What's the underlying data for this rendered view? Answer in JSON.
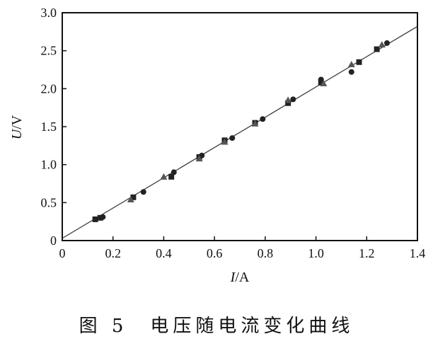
{
  "chart_data": {
    "type": "scatter",
    "xlabel_italic": "I",
    "xlabel_unit": "/A",
    "ylabel_italic": "U",
    "ylabel_unit": "/V",
    "xlim": [
      0,
      1.4
    ],
    "ylim": [
      0,
      3.0
    ],
    "xticks": [
      "0",
      "0.2",
      "0.4",
      "0.6",
      "0.8",
      "1.0",
      "1.2",
      "1.4"
    ],
    "yticks": [
      "0",
      "0.5",
      "1.0",
      "1.5",
      "2.0",
      "2.5",
      "3.0"
    ],
    "grid": false,
    "series": [
      {
        "marker": "square",
        "points": [
          [
            0.13,
            0.28
          ],
          [
            0.15,
            0.3
          ],
          [
            0.28,
            0.57
          ],
          [
            0.43,
            0.84
          ],
          [
            0.54,
            1.1
          ],
          [
            0.64,
            1.32
          ],
          [
            0.76,
            1.55
          ],
          [
            0.89,
            1.81
          ],
          [
            1.02,
            2.08
          ],
          [
            1.17,
            2.35
          ],
          [
            1.24,
            2.52
          ]
        ]
      },
      {
        "marker": "circle",
        "points": [
          [
            0.16,
            0.31
          ],
          [
            0.32,
            0.64
          ],
          [
            0.44,
            0.9
          ],
          [
            0.55,
            1.12
          ],
          [
            0.67,
            1.35
          ],
          [
            0.79,
            1.6
          ],
          [
            0.91,
            1.86
          ],
          [
            1.02,
            2.12
          ],
          [
            1.14,
            2.22
          ],
          [
            1.28,
            2.6
          ]
        ]
      },
      {
        "marker": "triangle",
        "points": [
          [
            0.27,
            0.54
          ],
          [
            0.4,
            0.84
          ],
          [
            0.54,
            1.08
          ],
          [
            0.64,
            1.3
          ],
          [
            0.76,
            1.54
          ],
          [
            0.89,
            1.85
          ],
          [
            1.03,
            2.07
          ],
          [
            1.14,
            2.32
          ],
          [
            1.26,
            2.58
          ]
        ]
      }
    ],
    "fit_line": {
      "type": "linear",
      "points": [
        [
          0,
          0.03
        ],
        [
          1.4,
          2.82
        ]
      ]
    }
  },
  "caption": "图 5　电压随电流变化曲线"
}
